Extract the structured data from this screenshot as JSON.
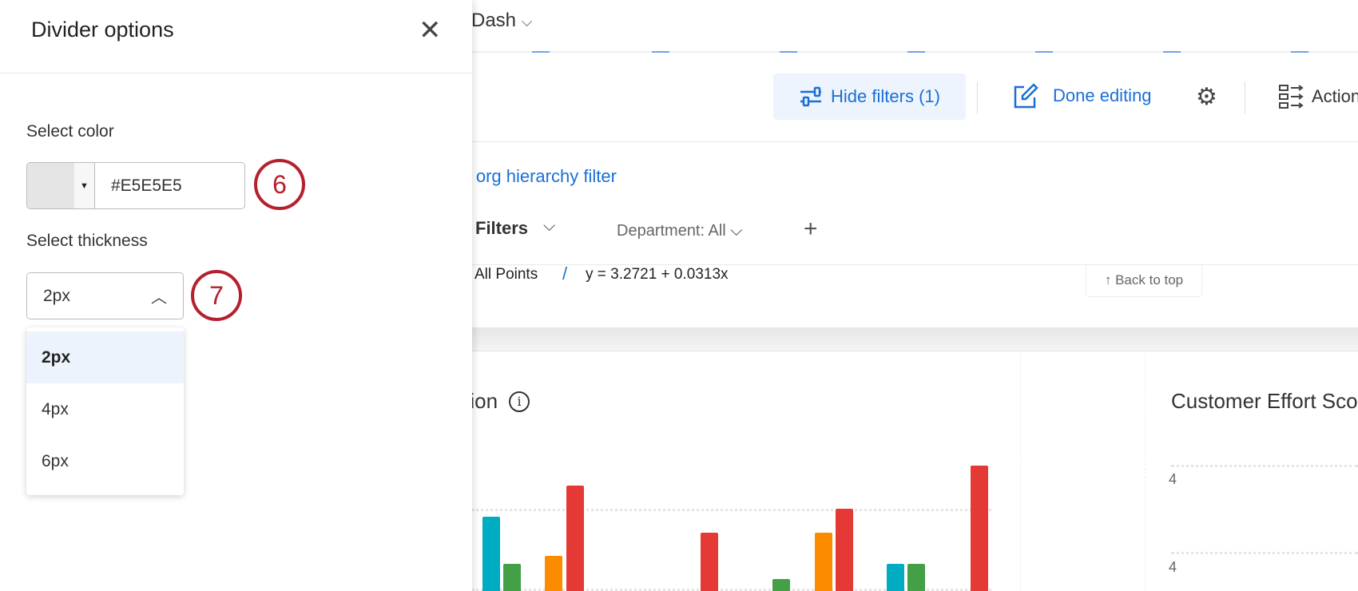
{
  "topbar": {
    "title": "Dash"
  },
  "toolbar": {
    "hide_filters": "Hide filters (1)",
    "done_editing": "Done editing",
    "actions": "Actions"
  },
  "filters": {
    "org_link": "Add an org hierarchy filter",
    "saved_filters": "Filters",
    "department": "Department: All"
  },
  "legend": {
    "all_points": "All Points",
    "equation": "y = 3.2721 + 0.0313x"
  },
  "back_to_top": "↑ Back to top",
  "widgets": {
    "left_title": "Participation",
    "right_title": "Customer Effort Score",
    "right_ticks": [
      "4",
      "4"
    ]
  },
  "chart_colors": {
    "cyan": "#00acc1",
    "green": "#43a047",
    "orange": "#fb8c00",
    "red": "#e53935"
  },
  "panel": {
    "title": "Divider options",
    "color_label": "Select color",
    "color_value": "#E5E5E5",
    "thickness_label": "Select thickness",
    "thickness_value": "2px",
    "thickness_options": [
      "2px",
      "4px",
      "6px"
    ],
    "callouts": [
      "6",
      "7"
    ]
  },
  "accent": "#1a6fd6",
  "callout_color": "#b5202e"
}
